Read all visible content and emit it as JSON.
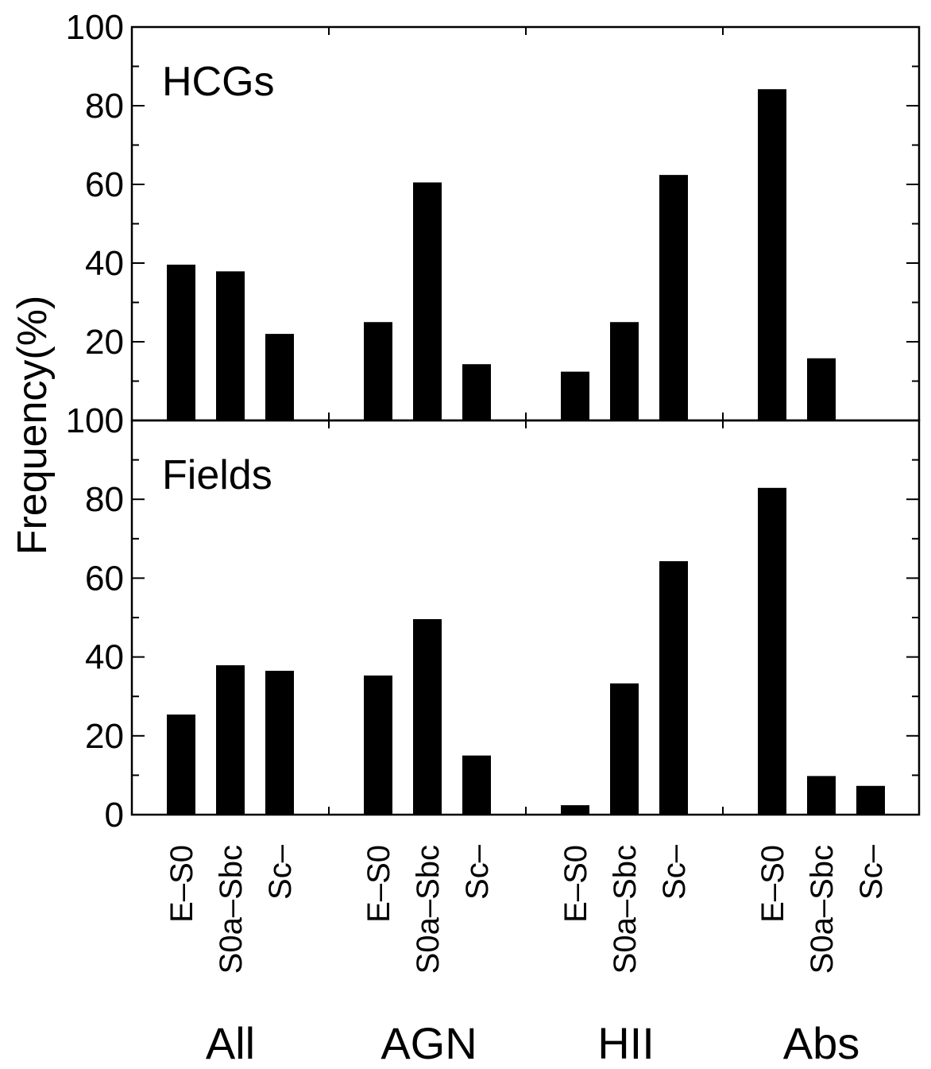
{
  "chart_data": {
    "type": "bar",
    "ylabel": "Frequency(%)",
    "ylim": [
      0,
      100
    ],
    "y_ticks": [
      "0",
      "20",
      "40",
      "60",
      "80",
      "100"
    ],
    "groups": [
      "All",
      "AGN",
      "HII",
      "Abs"
    ],
    "categories": [
      "E–S0",
      "S0a–Sbc",
      "Sc–"
    ],
    "bar_color": "#000000",
    "panels": [
      {
        "label": "HCGs",
        "series": [
          {
            "group": "All",
            "values": [
              39.6,
              37.9,
              22.0
            ]
          },
          {
            "group": "AGN",
            "values": [
              25.0,
              60.5,
              14.3
            ]
          },
          {
            "group": "HII",
            "values": [
              12.4,
              25.0,
              62.4
            ]
          },
          {
            "group": "Abs",
            "values": [
              84.2,
              15.8,
              null
            ]
          }
        ]
      },
      {
        "label": "Fields",
        "series": [
          {
            "group": "All",
            "values": [
              25.4,
              37.9,
              36.5
            ]
          },
          {
            "group": "AGN",
            "values": [
              35.3,
              49.6,
              15.0
            ]
          },
          {
            "group": "HII",
            "values": [
              2.4,
              33.3,
              64.3
            ]
          },
          {
            "group": "Abs",
            "values": [
              82.9,
              9.8,
              7.3
            ]
          }
        ]
      }
    ]
  }
}
